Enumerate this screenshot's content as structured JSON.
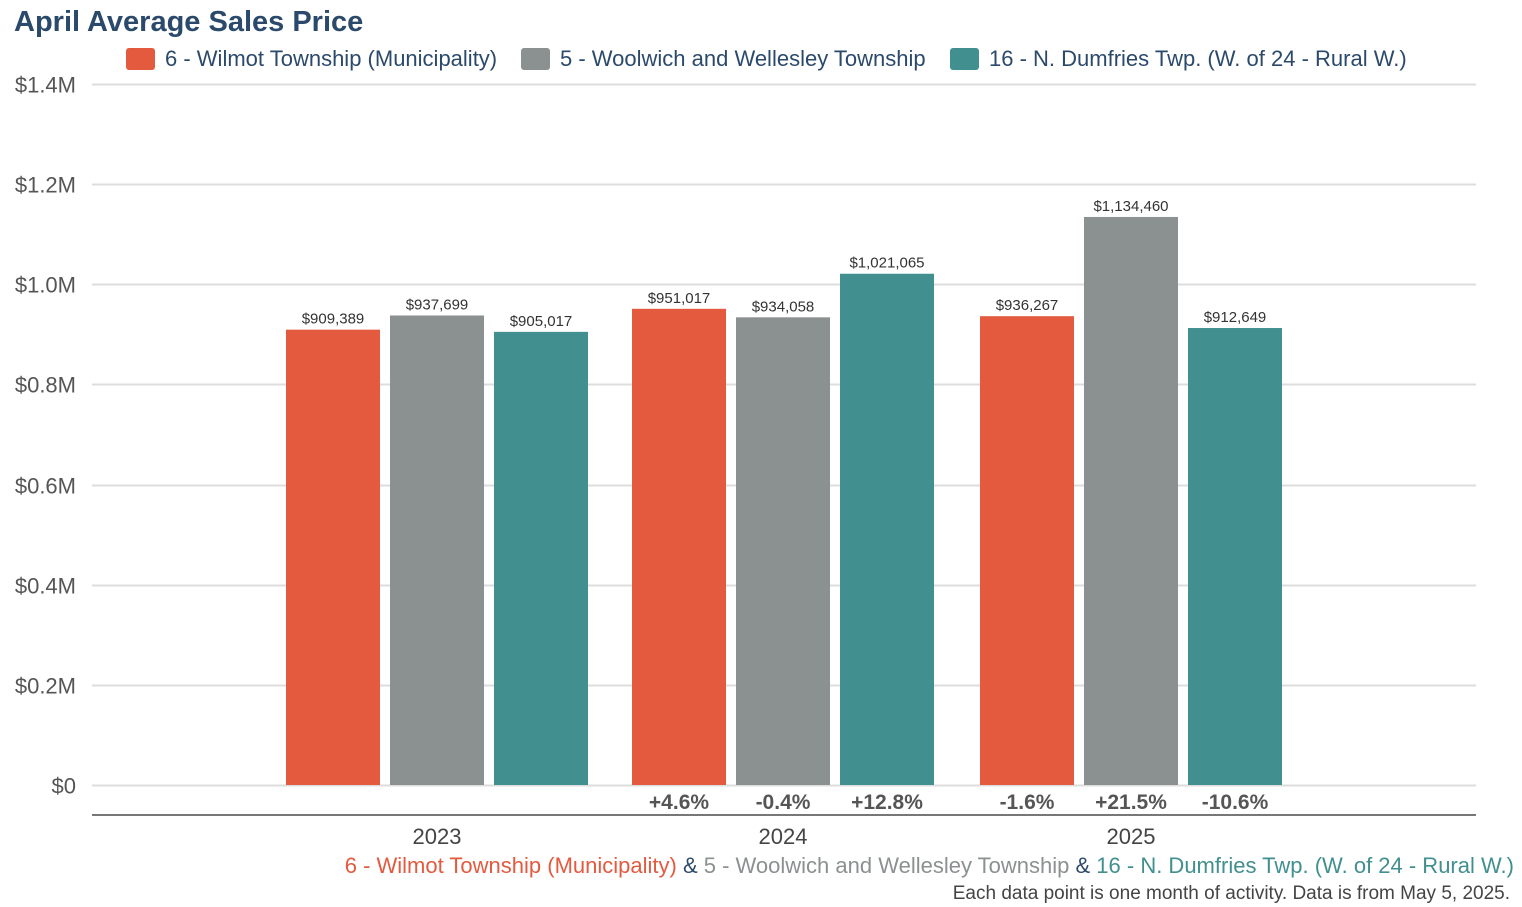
{
  "chart_data": {
    "type": "bar",
    "title": "April Average Sales Price",
    "categories": [
      "2023",
      "2024",
      "2025"
    ],
    "series": [
      {
        "name": "6 - Wilmot Township (Municipality)",
        "color": "#e35a3f",
        "values": [
          909389,
          951017,
          936267
        ],
        "labels": [
          "$909,389",
          "$951,017",
          "$936,267"
        ],
        "changes": [
          "",
          "+4.6%",
          "-1.6%"
        ]
      },
      {
        "name": "5 - Woolwich and Wellesley Township",
        "color": "#8a9190",
        "values": [
          937699,
          934058,
          1134460
        ],
        "labels": [
          "$937,699",
          "$934,058",
          "$1,134,460"
        ],
        "changes": [
          "",
          "-0.4%",
          "+21.5%"
        ]
      },
      {
        "name": "16 - N. Dumfries Twp. (W. of 24 - Rural W.)",
        "color": "#428f8f",
        "values": [
          905017,
          1021065,
          912649
        ],
        "labels": [
          "$905,017",
          "$1,021,065",
          "$912,649"
        ],
        "changes": [
          "",
          "+12.8%",
          "-10.6%"
        ]
      }
    ],
    "ylim": [
      0,
      1400000
    ],
    "yticks": [
      0,
      200000,
      400000,
      600000,
      800000,
      1000000,
      1200000,
      1400000
    ],
    "ytick_labels": [
      "$0",
      "$0.2M",
      "$0.4M",
      "$0.6M",
      "$0.8M",
      "$1.0M",
      "$1.2M",
      "$1.4M"
    ],
    "grid": true,
    "legend": "top"
  },
  "footer": {
    "series_1": "6 - Wilmot Township (Municipality)",
    "sep_1": " & ",
    "series_2": "5 - Woolwich and Wellesley Township",
    "sep_2": " & ",
    "series_3": "16 - N. Dumfries Twp. (W. of 24 - Rural W.)",
    "note": "Each data point is one month of activity. Data is from May 5, 2025."
  },
  "colors": {
    "title": "#2b4a6b",
    "wilmot": "#e35a3f",
    "woolwich": "#8a9190",
    "dumfries": "#428f8f",
    "grid": "#dddddd",
    "axis": "#777777"
  }
}
